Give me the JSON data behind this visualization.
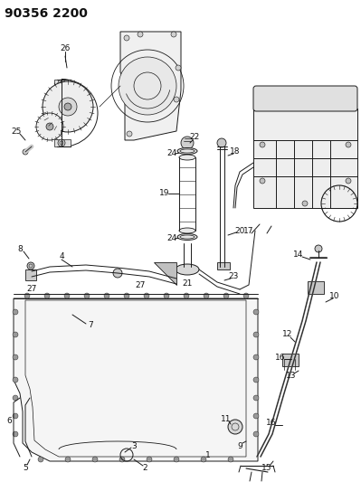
{
  "title": "90356 2200",
  "bg_color": "#ffffff",
  "title_fontsize": 10,
  "title_fontweight": "bold",
  "figsize": [
    3.99,
    5.33
  ],
  "dpi": 100,
  "lc": "#1a1a1a",
  "lw": 0.7
}
